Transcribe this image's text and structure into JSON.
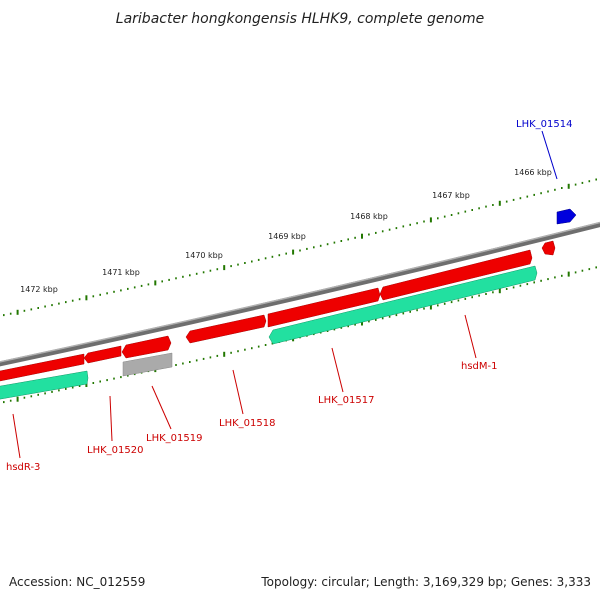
{
  "title": "Laribacter hongkongensis HLHK9, complete genome",
  "footer": {
    "accession": "Accession: NC_012559",
    "summary": "Topology: circular; Length: 3,169,329 bp; Genes: 3,333"
  },
  "colors": {
    "backbone": "#7a7a7a",
    "gene_red": "#ee0000",
    "gene_green": "#22e0a0",
    "gene_gray": "#aaaaaa",
    "gene_blue": "#0000dd",
    "tick": "#227700"
  },
  "kbp_labels": [
    "1472 kbp",
    "1471 kbp",
    "1470 kbp",
    "1469 kbp",
    "1468 kbp",
    "1467 kbp",
    "1466 kbp"
  ],
  "genes": [
    {
      "label": "LHK_01514",
      "color": "#0000cc"
    },
    {
      "label": "hsdM-1",
      "color": "#cc0000"
    },
    {
      "label": "LHK_01517",
      "color": "#cc0000"
    },
    {
      "label": "LHK_01518",
      "color": "#cc0000"
    },
    {
      "label": "LHK_01519",
      "color": "#cc0000"
    },
    {
      "label": "LHK_01520",
      "color": "#cc0000"
    },
    {
      "label": "hsdR-3",
      "color": "#cc0000"
    }
  ]
}
